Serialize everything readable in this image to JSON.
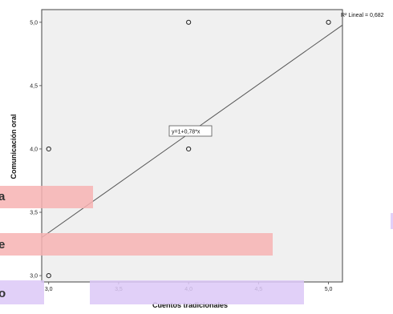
{
  "chart_data": {
    "type": "scatter",
    "xlabel": "Cuentos tradicionales",
    "ylabel": "Comunicación oral",
    "xlim": [
      2.95,
      5.1
    ],
    "ylim": [
      2.95,
      5.1
    ],
    "x_ticks": [
      "3,0",
      "3,5",
      "4,0",
      "4,5",
      "5,0"
    ],
    "y_ticks": [
      "3,0",
      "3,5",
      "4,0",
      "4,5",
      "5,0"
    ],
    "points": [
      {
        "x": 3.0,
        "y": 3.0
      },
      {
        "x": 3.0,
        "y": 4.0
      },
      {
        "x": 4.0,
        "y": 4.0
      },
      {
        "x": 4.0,
        "y": 5.0
      },
      {
        "x": 5.0,
        "y": 5.0
      }
    ],
    "fit_line": {
      "intercept": 1.0,
      "slope": 0.78
    },
    "equation_label": "y=1+0,78*x",
    "r2_label": "R² Lineal = 0,682",
    "grid": false,
    "colors": {
      "plot_bg": "#f0f0f0",
      "frame": "#444444",
      "line": "#555555",
      "point": "#222222"
    }
  },
  "overlays": {
    "left_labels": [
      "a",
      "e",
      "o"
    ],
    "colors": {
      "pink": "#f7b3b3",
      "violet": "#dcc8f7"
    }
  }
}
